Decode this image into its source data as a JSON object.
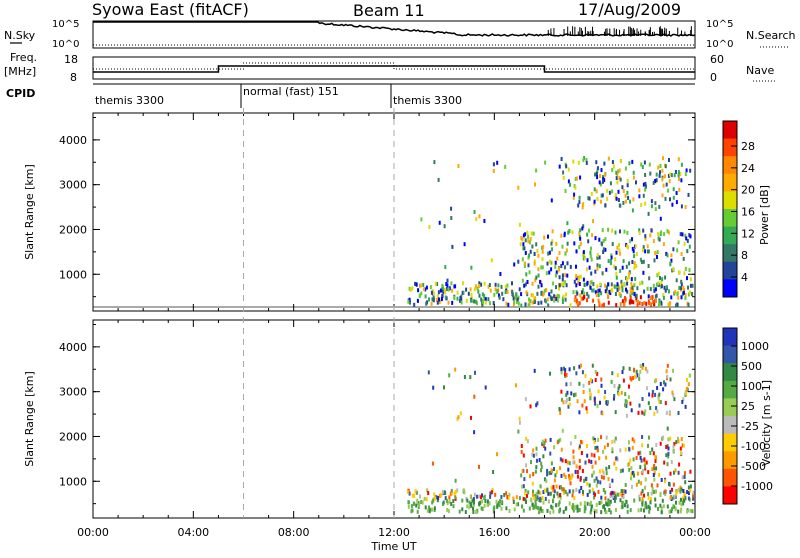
{
  "header": {
    "station": "Syowa East (fitACF)",
    "beam": "Beam 11",
    "date": "17/Aug/2009"
  },
  "nsky_panel": {
    "left_label": "N.Sky",
    "right_label": "N.Search",
    "left_ticks": [
      "10^5",
      "10^0"
    ],
    "right_ticks": [
      "10^5",
      "10^0"
    ]
  },
  "freq_panel": {
    "left_label_line1": "Freq.",
    "left_label_line2": "[MHz]",
    "right_label": "Nave",
    "left_ticks": [
      "18",
      "8"
    ],
    "right_ticks": [
      "60",
      "0"
    ]
  },
  "cpid_panel": {
    "label": "CPID",
    "segments": [
      {
        "start_hour": 0,
        "end_hour": 6,
        "text": "themis 3300"
      },
      {
        "start_hour": 6,
        "end_hour": 12,
        "text": "normal (fast) 151"
      },
      {
        "start_hour": 12,
        "end_hour": 24,
        "text": "themis 3300"
      }
    ]
  },
  "chart_data": [
    {
      "type": "heatmap",
      "name": "power",
      "ylabel": "Slant Range [km]",
      "ylim": [
        180,
        4600
      ],
      "yticks": [
        "1000",
        "2000",
        "3000",
        "4000"
      ],
      "xlim_hours": [
        0,
        24
      ],
      "colorbar_label": "Power [dB]",
      "colorbar_ticks": [
        "28",
        "24",
        "20",
        "16",
        "12",
        "8",
        "4"
      ],
      "colorbar_colors": [
        "#dd0000",
        "#ff4400",
        "#ff8800",
        "#ffaa00",
        "#dddd00",
        "#66cc33",
        "#33aa55",
        "#337766",
        "#224499",
        "#0000ff"
      ]
    },
    {
      "type": "heatmap",
      "name": "velocity",
      "ylabel": "Slant Range [km]",
      "ylim": [
        180,
        4600
      ],
      "yticks": [
        "1000",
        "2000",
        "3000",
        "4000"
      ],
      "xlim_hours": [
        0,
        24
      ],
      "colorbar_label": "Velocity [m s-1]",
      "colorbar_ticks": [
        "1000",
        "500",
        "100",
        "25",
        "-25",
        "-100",
        "-500",
        "-1000"
      ],
      "colorbar_colors": [
        "#2233bb",
        "#3355aa",
        "#338844",
        "#55aa44",
        "#99cc55",
        "#bbbbbb",
        "#ffcc00",
        "#ff9900",
        "#ff5500",
        "#ff0000"
      ]
    }
  ],
  "x_axis": {
    "tick_labels": [
      "00:00",
      "04:00",
      "08:00",
      "12:00",
      "16:00",
      "20:00",
      "00:00"
    ],
    "title": "Time UT"
  }
}
